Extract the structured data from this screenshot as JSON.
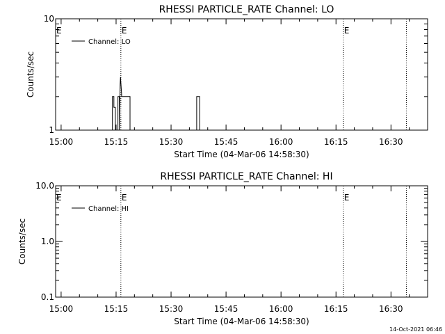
{
  "chart_data": [
    {
      "type": "line",
      "title": "RHESSI PARTICLE_RATE Channel: LO",
      "xlabel": "Start Time (04-Mar-06 14:58:30)",
      "ylabel": "Counts/sec",
      "y_scale": "log",
      "ylim": [
        1,
        10
      ],
      "y_ticks": [
        {
          "value": 1,
          "label": "1"
        },
        {
          "value": 10,
          "label": "10"
        }
      ],
      "x_ticks": [
        {
          "minute": 0,
          "label": "15:00"
        },
        {
          "minute": 15,
          "label": "15:15"
        },
        {
          "minute": 30,
          "label": "15:30"
        },
        {
          "minute": 45,
          "label": "15:45"
        },
        {
          "minute": 60,
          "label": "16:00"
        },
        {
          "minute": 75,
          "label": "16:15"
        },
        {
          "minute": 90,
          "label": "16:30"
        }
      ],
      "xlim": [
        -1.5,
        100
      ],
      "legend": {
        "label": "Channel: LO",
        "position": "top-left"
      },
      "markers": [
        {
          "x": 16.3,
          "label": "E"
        },
        {
          "x": 77.0,
          "label": "E"
        },
        {
          "x": 94.2,
          "label": ""
        }
      ],
      "series": [
        {
          "name": "Channel: LO",
          "x": [
            14.0,
            14.0,
            14.4,
            14.4,
            14.8,
            14.8,
            15.5,
            15.5,
            15.9,
            15.9,
            16.1,
            16.2,
            16.3,
            16.4,
            16.5,
            16.5,
            16.8,
            16.8,
            18.8,
            18.8,
            37.0,
            37.0,
            37.8,
            37.8
          ],
          "y": [
            1,
            2,
            2,
            1.6,
            1.6,
            1,
            1,
            2,
            2,
            1,
            2.6,
            3.0,
            2.7,
            2.4,
            2.1,
            2,
            2,
            2,
            2,
            1,
            1,
            2,
            2,
            1
          ]
        }
      ]
    },
    {
      "type": "line",
      "title": "RHESSI PARTICLE_RATE Channel: HI",
      "xlabel": "Start Time (04-Mar-06 14:58:30)",
      "ylabel": "Counts/sec",
      "y_scale": "log",
      "ylim": [
        0.1,
        10
      ],
      "y_ticks": [
        {
          "value": 0.1,
          "label": "0.1"
        },
        {
          "value": 1,
          "label": "1.0"
        },
        {
          "value": 10,
          "label": "10.0"
        }
      ],
      "x_ticks": [
        {
          "minute": 0,
          "label": "15:00"
        },
        {
          "minute": 15,
          "label": "15:15"
        },
        {
          "minute": 30,
          "label": "15:30"
        },
        {
          "minute": 45,
          "label": "15:45"
        },
        {
          "minute": 60,
          "label": "16:00"
        },
        {
          "minute": 75,
          "label": "16:15"
        },
        {
          "minute": 90,
          "label": "16:30"
        }
      ],
      "xlim": [
        -1.5,
        100
      ],
      "legend": {
        "label": "Channel: HI",
        "position": "top-left"
      },
      "markers": [
        {
          "x": 16.3,
          "label": "E"
        },
        {
          "x": 77.0,
          "label": "E"
        },
        {
          "x": 94.2,
          "label": ""
        }
      ],
      "series": [
        {
          "name": "Channel: HI",
          "x": [],
          "y": []
        }
      ]
    }
  ],
  "footer": {
    "timestamp": "14-Oct-2021 06:46"
  }
}
